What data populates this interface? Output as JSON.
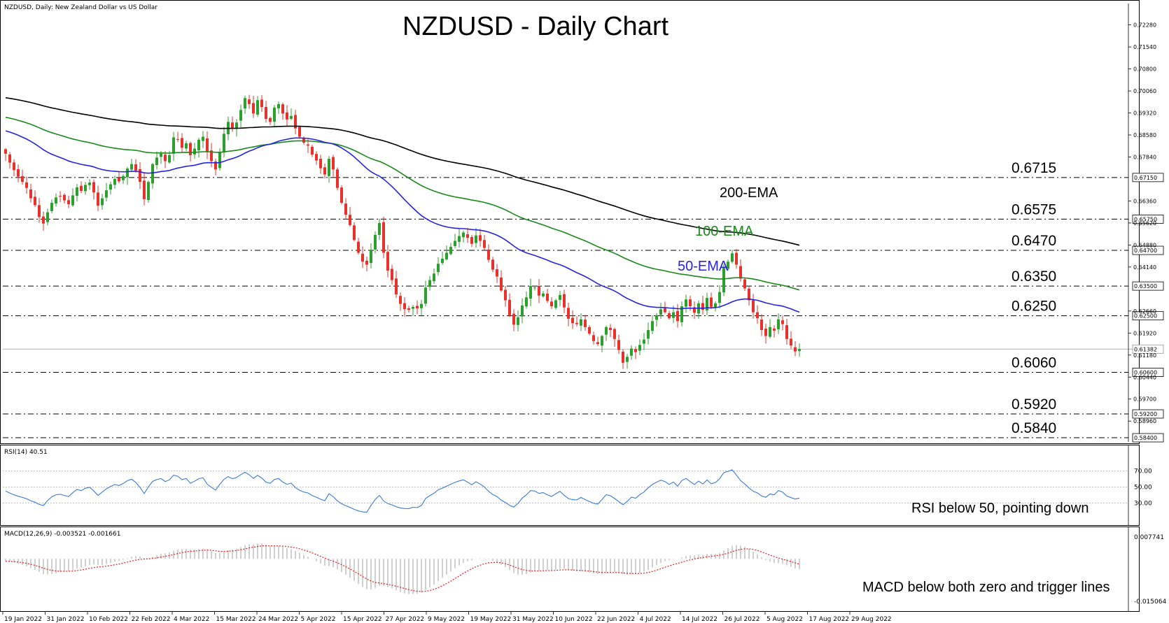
{
  "chart_data": {
    "type": "candlestick",
    "header": "NZDUSD, Daily:  New Zealand Dollar vs US Dollar",
    "title": "NZDUSD - Daily Chart",
    "x_labels": [
      "19 Jan 2022",
      "31 Jan 2022",
      "10 Feb 2022",
      "22 Feb 2022",
      "4 Mar 2022",
      "15 Mar 2022",
      "24 Mar 2022",
      "5 Apr 2022",
      "15 Apr 2022",
      "27 Apr 2022",
      "9 May 2022",
      "19 May 2022",
      "31 May 2022",
      "10 Jun 2022",
      "22 Jun 2022",
      "4 Jul 2022",
      "14 Jul 2022",
      "26 Jul 2022",
      "5 Aug 2022",
      "17 Aug 2022",
      "29 Aug 2022"
    ],
    "ylim": [
      0.5826,
      0.73
    ],
    "y_ticks": [
      "0.72280",
      "0.71540",
      "0.70800",
      "0.70060",
      "0.69320",
      "0.68580",
      "0.67840",
      "0.66360",
      "0.65620",
      "0.64880",
      "0.64140",
      "0.62660",
      "0.61920",
      "0.61180",
      "0.60440",
      "0.59700",
      "0.58960"
    ],
    "levels": [
      {
        "value": 0.6715,
        "label": "0.6715",
        "box": "0.67150"
      },
      {
        "value": 0.6575,
        "label": "0.6575",
        "box": "0.65750"
      },
      {
        "value": 0.647,
        "label": "0.6470",
        "box": "0.64700"
      },
      {
        "value": 0.635,
        "label": "0.6350",
        "box": "0.63500"
      },
      {
        "value": 0.625,
        "label": "0.6250",
        "box": "0.62500"
      },
      {
        "value": 0.606,
        "label": "0.6060",
        "box": "0.60600"
      },
      {
        "value": 0.592,
        "label": "0.5920",
        "box": "0.59200"
      },
      {
        "value": 0.584,
        "label": "0.5840",
        "box": "0.58400"
      }
    ],
    "current_price": {
      "value": 0.6138,
      "label": "0.61382"
    },
    "ema_labels": {
      "ema200": "200-EMA",
      "ema100": "100-EMA",
      "ema50": "50-EMA"
    },
    "colors": {
      "up": "#2ca02c",
      "down": "#e8312a",
      "ema200": "#000000",
      "ema100": "#1a8a1a",
      "ema50": "#2525e0",
      "rsi": "#3a7ad8",
      "macd_signal": "#e02020",
      "macd_hist": "#b0b0b0"
    },
    "closes": [
      0.6795,
      0.6765,
      0.674,
      0.6718,
      0.67,
      0.668,
      0.6645,
      0.6622,
      0.6582,
      0.656,
      0.6598,
      0.663,
      0.6648,
      0.6652,
      0.6638,
      0.6625,
      0.6655,
      0.6682,
      0.667,
      0.669,
      0.6698,
      0.6665,
      0.662,
      0.6645,
      0.6672,
      0.6692,
      0.671,
      0.6702,
      0.672,
      0.6745,
      0.676,
      0.6738,
      0.67,
      0.6642,
      0.67,
      0.676,
      0.6782,
      0.6795,
      0.677,
      0.679,
      0.685,
      0.6842,
      0.6815,
      0.683,
      0.679,
      0.6812,
      0.6842,
      0.6852,
      0.68,
      0.677,
      0.6742,
      0.68,
      0.6862,
      0.6902,
      0.6882,
      0.69,
      0.6942,
      0.6982,
      0.6962,
      0.693,
      0.6975,
      0.6952,
      0.6912,
      0.6902,
      0.695,
      0.6962,
      0.693,
      0.691,
      0.6922,
      0.688,
      0.6852,
      0.6832,
      0.6822,
      0.6792,
      0.6772,
      0.6746,
      0.6725,
      0.6778,
      0.6742,
      0.668,
      0.663,
      0.659,
      0.6555,
      0.6505,
      0.6462,
      0.6432,
      0.6422,
      0.6472,
      0.6522,
      0.6562,
      0.6462,
      0.6402,
      0.637,
      0.6322,
      0.629,
      0.6272,
      0.627,
      0.628,
      0.6275,
      0.629,
      0.6345,
      0.637,
      0.6392,
      0.6425,
      0.6442,
      0.6462,
      0.6482,
      0.6502,
      0.6518,
      0.653,
      0.6512,
      0.6492,
      0.652,
      0.6502,
      0.6478,
      0.6438,
      0.6405,
      0.6382,
      0.6335,
      0.6302,
      0.6252,
      0.622,
      0.6245,
      0.6285,
      0.6312,
      0.635,
      0.6345,
      0.6318,
      0.6325,
      0.63,
      0.6282,
      0.6302,
      0.632,
      0.6278,
      0.624,
      0.6225,
      0.6222,
      0.6238,
      0.6212,
      0.619,
      0.6165,
      0.6155,
      0.6182,
      0.6212,
      0.6202,
      0.6172,
      0.6135,
      0.6092,
      0.6112,
      0.614,
      0.6128,
      0.6152,
      0.617,
      0.6202,
      0.6232,
      0.6252,
      0.6272,
      0.6262,
      0.6242,
      0.6262,
      0.6232,
      0.6282,
      0.6305,
      0.6282,
      0.626,
      0.6292,
      0.627,
      0.631,
      0.628,
      0.6292,
      0.633,
      0.6412,
      0.6432,
      0.646,
      0.6422,
      0.6375,
      0.6342,
      0.6302,
      0.6262,
      0.6242,
      0.6202,
      0.6182,
      0.6212,
      0.62,
      0.6238,
      0.6222,
      0.6172,
      0.615,
      0.613,
      0.6138
    ],
    "rsi_ticks": [
      "70.00",
      "50.00",
      "30.00"
    ],
    "rsi_label": "RSI(14) 40.51",
    "rsi_note": "RSI below 50, pointing down",
    "macd_ticks": [
      "0.007741",
      "-0.015064"
    ],
    "macd_label": "MACD(12,26,9) -0.003521 -0.001661",
    "macd_note": "MACD below both zero and trigger lines"
  }
}
